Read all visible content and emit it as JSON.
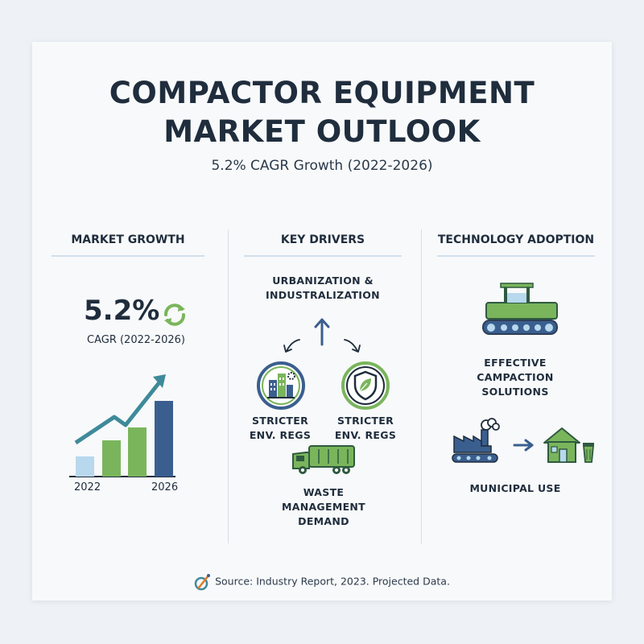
{
  "title_line1": "COMPACTOR EQUIPMENT",
  "title_line2": "MARKET OUTLOOK",
  "subtitle": "5.2% CAGR Growth (2022-2026)",
  "market_growth": {
    "heading": "MARKET GROWTH",
    "value": "5.2%",
    "cagr_label": "CAGR (2022-2026)",
    "year_start": "2022",
    "year_end": "2026"
  },
  "key_drivers": {
    "heading": "KEY DRIVERS",
    "top_line1": "URBANIZATION &",
    "top_line2": "INDUSTRALIZATION",
    "left_line1": "STRICTER",
    "left_line2": "ENV. REGS",
    "right_line1": "STRICTER",
    "right_line2": "ENV. REGS",
    "bottom_line1": "WASTE",
    "bottom_line2": "MANAGEMENT",
    "bottom_line3": "DEMAND"
  },
  "technology": {
    "heading": "TECHNOLOGY ADOPTION",
    "effective_line1": "EFFECTIVE",
    "effective_line2": "CAMPACTION",
    "effective_line3": "SOLUTIONS",
    "municipal": "MUNICIPAL USE"
  },
  "source": "Source: Industry Report, 2023. Projected Data.",
  "colors": {
    "navy": "#1f2d3d",
    "green": "#7ab55c",
    "teal": "#3e8a9a",
    "blue": "#3a5f8f",
    "light_blue": "#b8d8ee"
  }
}
